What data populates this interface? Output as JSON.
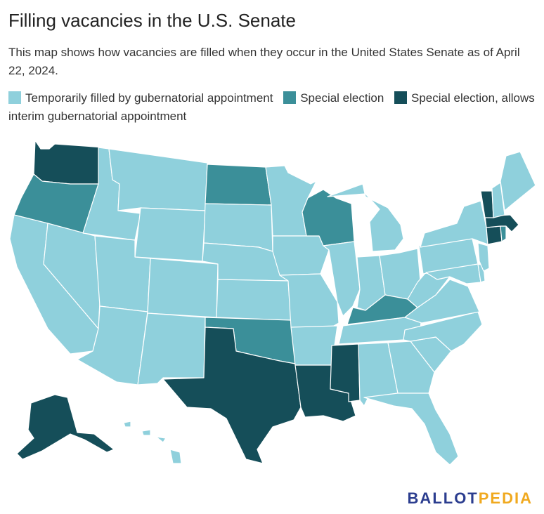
{
  "title": "Filling vacancies in the U.S. Senate",
  "subtitle": "This map shows how vacancies are filled when they occur in the United States Senate as of April 22, 2024.",
  "legend": [
    {
      "key": "appointment",
      "label": "Temporarily filled by gubernatorial appointment",
      "color": "#8fd0dc"
    },
    {
      "key": "special",
      "label": "Special election",
      "color": "#3b8f99"
    },
    {
      "key": "special_interim",
      "label": "Special election, allows interim gubernatorial appointment",
      "color": "#154e59"
    }
  ],
  "map_data": {
    "type": "choropleth",
    "region": "United States",
    "categories": {
      "special": [
        "OR",
        "ND",
        "WI",
        "KY",
        "OK",
        "RI"
      ],
      "special_interim": [
        "WA",
        "TX",
        "LA",
        "MS",
        "VT",
        "MA",
        "CT",
        "AK"
      ],
      "appointment": [
        "CA",
        "NV",
        "ID",
        "MT",
        "WY",
        "UT",
        "CO",
        "AZ",
        "NM",
        "SD",
        "NE",
        "KS",
        "MN",
        "IA",
        "MO",
        "AR",
        "IL",
        "MI",
        "IN",
        "OH",
        "TN",
        "AL",
        "GA",
        "FL",
        "SC",
        "NC",
        "VA",
        "WV",
        "PA",
        "NY",
        "NJ",
        "DE",
        "MD",
        "ME",
        "NH",
        "HI"
      ]
    }
  },
  "brand": {
    "part1": "BALLOT",
    "part2": "PEDIA",
    "color1": "#2b3d8f",
    "color2": "#f0a91f"
  }
}
